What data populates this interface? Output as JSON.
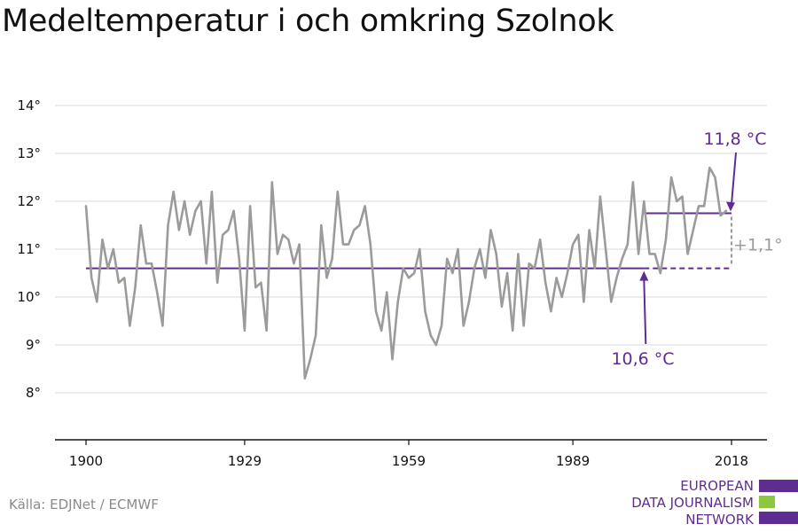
{
  "title": "Medeltemperatur i och omkring Szolnok",
  "source": "Källa: EDJNet / ECMWF",
  "logo": {
    "lines": [
      "EUROPEAN",
      "DATA JOURNALISM",
      "NETWORK"
    ],
    "colors": {
      "purple": "#5e2d91",
      "green": "#8dc63f"
    }
  },
  "colors": {
    "series": "#9b9b9b",
    "reference": "#5e2d91",
    "grid": "#d9d9d9",
    "axis": "#111111",
    "diff": "#9b9b9b"
  },
  "chart_data": {
    "type": "line",
    "title": "Medeltemperatur i och omkring Szolnok",
    "xlabel": "",
    "ylabel": "",
    "ylim": [
      7,
      14.3
    ],
    "xlim": [
      1900,
      2018
    ],
    "grid": true,
    "x_ticks": [
      1900,
      1929,
      1959,
      1989,
      2018
    ],
    "x_tick_labels": [
      "1900",
      "1929",
      "1959",
      "1989",
      "2018"
    ],
    "y_ticks": [
      8,
      9,
      10,
      11,
      12,
      13,
      14
    ],
    "y_tick_labels": [
      "8°",
      "9°",
      "10°",
      "11°",
      "12°",
      "13°",
      "14°"
    ],
    "series": [
      {
        "start_year": 1900,
        "values": [
          11.9,
          10.4,
          9.9,
          11.2,
          10.6,
          11.0,
          10.3,
          10.4,
          9.4,
          10.2,
          11.5,
          10.7,
          10.7,
          10.1,
          9.4,
          11.5,
          12.2,
          11.4,
          12.0,
          11.3,
          11.8,
          12.0,
          10.7,
          12.2,
          10.3,
          11.3,
          11.4,
          11.8,
          10.8,
          9.3,
          11.9,
          10.2,
          10.3,
          9.3,
          12.4,
          10.9,
          11.3,
          11.2,
          10.7,
          11.1,
          8.3,
          8.7,
          9.2,
          11.5,
          10.4,
          10.8,
          12.2,
          11.1,
          11.1,
          11.4,
          11.5,
          11.9,
          11.1,
          9.7,
          9.3,
          10.1,
          8.7,
          9.9,
          10.6,
          10.4,
          10.5,
          11.0,
          9.7,
          9.2,
          9.0,
          9.4,
          10.8,
          10.5,
          11.0,
          9.4,
          9.9,
          10.6,
          11.0,
          10.4,
          11.4,
          10.9,
          9.8,
          10.5,
          9.3,
          10.9,
          9.4,
          10.7,
          10.6,
          11.2,
          10.3,
          9.7,
          10.4,
          10.0,
          10.5,
          11.1,
          11.3,
          9.9,
          11.4,
          10.6,
          12.1,
          11.0,
          9.9,
          10.4,
          10.8,
          11.1,
          12.4,
          10.9,
          12.0,
          10.9,
          10.9,
          10.5,
          11.2,
          12.5,
          12.0,
          12.1,
          10.9,
          11.4,
          11.9,
          11.9,
          12.7,
          12.5,
          11.7,
          11.8
        ]
      }
    ],
    "reference_lines": [
      {
        "label": "10,6 °C",
        "value": 10.6,
        "from_year": 1900,
        "to_year": 2018,
        "dashed_from": 2002
      },
      {
        "label": "11,8 °C",
        "value": 11.75,
        "from_year": 2002,
        "to_year": 2018
      }
    ],
    "annotations": {
      "high_label": "11,8 °C",
      "low_label": "10,6 °C",
      "difference_label": "+1,1°"
    }
  }
}
